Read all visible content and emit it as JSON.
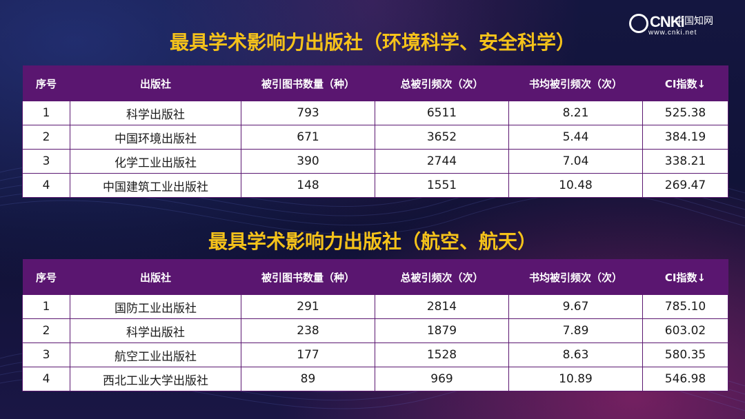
{
  "logo": {
    "brand": "CNKi",
    "cn_name": "中国知网",
    "url": "www.cnki.net"
  },
  "colors": {
    "title": "#f5c21a",
    "header_bg": "#5a1670",
    "cell_bg": "#ffffff",
    "border": "#5a1670"
  },
  "sections": [
    {
      "title": "最具学术影响力出版社（环境科学、安全科学）",
      "headers": [
        "序号",
        "出版社",
        "被引图书数量（种）",
        "总被引频次（次）",
        "书均被引频次（次）",
        "CI指数↓"
      ],
      "rows": [
        [
          "1",
          "科学出版社",
          "793",
          "6511",
          "8.21",
          "525.38"
        ],
        [
          "2",
          "中国环境出版社",
          "671",
          "3652",
          "5.44",
          "384.19"
        ],
        [
          "3",
          "化学工业出版社",
          "390",
          "2744",
          "7.04",
          "338.21"
        ],
        [
          "4",
          "中国建筑工业出版社",
          "148",
          "1551",
          "10.48",
          "269.47"
        ]
      ]
    },
    {
      "title": "最具学术影响力出版社（航空、航天）",
      "headers": [
        "序号",
        "出版社",
        "被引图书数量（种）",
        "总被引频次（次）",
        "书均被引频次（次）",
        "CI指数↓"
      ],
      "rows": [
        [
          "1",
          "国防工业出版社",
          "291",
          "2814",
          "9.67",
          "785.10"
        ],
        [
          "2",
          "科学出版社",
          "238",
          "1879",
          "7.89",
          "603.02"
        ],
        [
          "3",
          "航空工业出版社",
          "177",
          "1528",
          "8.63",
          "580.35"
        ],
        [
          "4",
          "西北工业大学出版社",
          "89",
          "969",
          "10.89",
          "546.98"
        ]
      ]
    }
  ]
}
